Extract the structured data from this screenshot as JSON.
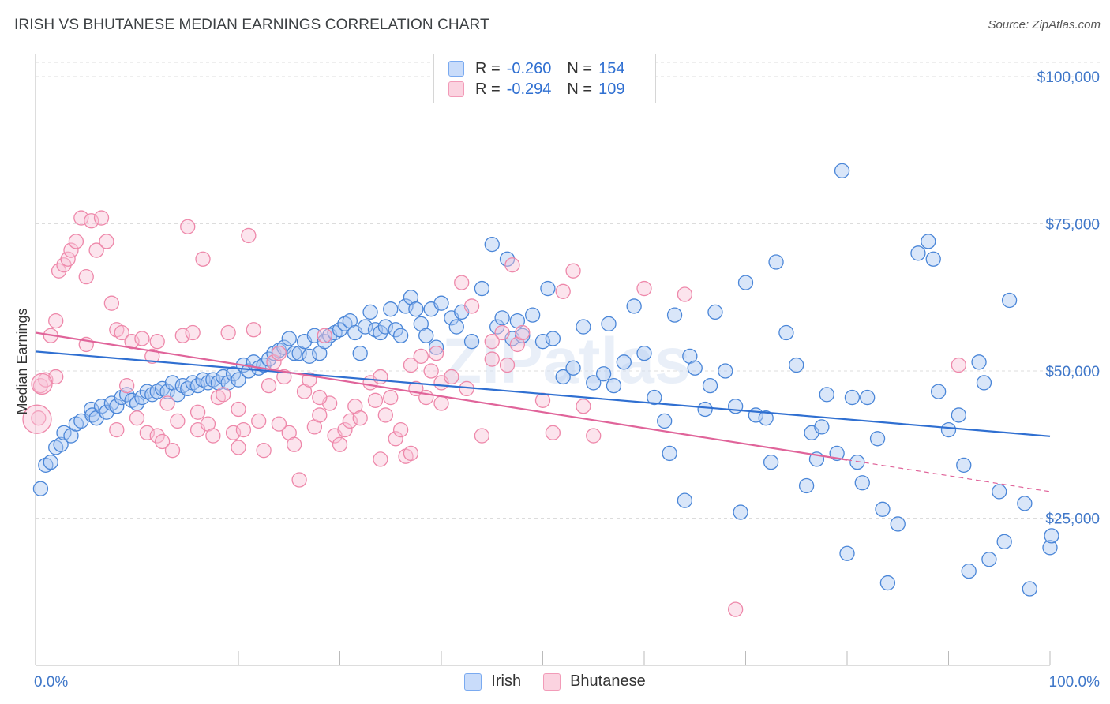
{
  "title": "IRISH VS BHUTANESE MEDIAN EARNINGS CORRELATION CHART",
  "source": "Source: ZipAtlas.com",
  "watermark": "ZIPatlas",
  "legend": {
    "rows": [
      {
        "series": "Irish",
        "r_label": "R =",
        "r_value": "-0.260",
        "n_label": "N =",
        "n_value": "154",
        "color": "#7aaaf0",
        "fill": "#c9dcfa"
      },
      {
        "series": "Bhutanese",
        "r_label": "R =",
        "r_value": "-0.294",
        "n_label": "N =",
        "n_value": "109",
        "color": "#f29bb8",
        "fill": "#fbd3e0"
      }
    ]
  },
  "bottom_legend": [
    "Irish",
    "Bhutanese"
  ],
  "chart_data": {
    "type": "scatter",
    "title": "IRISH VS BHUTANESE MEDIAN EARNINGS CORRELATION CHART",
    "xlabel": "",
    "ylabel": "Median Earnings",
    "xlim": [
      0,
      100
    ],
    "ylim": [
      0,
      105000
    ],
    "x_tick_labels": [
      "0.0%",
      "100.0%"
    ],
    "y_ticks": [
      25000,
      50000,
      75000,
      100000
    ],
    "y_tick_labels": [
      "$25,000",
      "$50,000",
      "$75,000",
      "$100,000"
    ],
    "grid": true,
    "series": [
      {
        "name": "Irish",
        "color": "#4a86d8",
        "fill": "#aac8f2",
        "trend": {
          "x0": 0,
          "y0": 53300,
          "x1": 100,
          "y1": 38900
        },
        "points": [
          [
            0.5,
            30000
          ],
          [
            1.0,
            34000
          ],
          [
            1.5,
            34500
          ],
          [
            2,
            37000
          ],
          [
            2.5,
            37500
          ],
          [
            2.8,
            39500
          ],
          [
            3.5,
            39000
          ],
          [
            4,
            41000
          ],
          [
            4.5,
            41500
          ],
          [
            5.5,
            43500
          ],
          [
            5.6,
            42500
          ],
          [
            6,
            42000
          ],
          [
            6.5,
            44000
          ],
          [
            7,
            43000
          ],
          [
            7.5,
            44500
          ],
          [
            8,
            44000
          ],
          [
            8.5,
            45500
          ],
          [
            9,
            46000
          ],
          [
            9.5,
            45000
          ],
          [
            10,
            44500
          ],
          [
            10.5,
            45500
          ],
          [
            11,
            46500
          ],
          [
            11.5,
            46000
          ],
          [
            12,
            46500
          ],
          [
            12.5,
            47000
          ],
          [
            13,
            46500
          ],
          [
            13.5,
            48000
          ],
          [
            14,
            46000
          ],
          [
            14.5,
            47500
          ],
          [
            15,
            47000
          ],
          [
            15.5,
            48000
          ],
          [
            16,
            47500
          ],
          [
            16.5,
            48500
          ],
          [
            17,
            48000
          ],
          [
            17.5,
            48500
          ],
          [
            18,
            48000
          ],
          [
            18.5,
            49000
          ],
          [
            19,
            48000
          ],
          [
            19.5,
            49500
          ],
          [
            20,
            48500
          ],
          [
            20.5,
            51000
          ],
          [
            21,
            50000
          ],
          [
            21.5,
            51500
          ],
          [
            22,
            50500
          ],
          [
            22.5,
            51000
          ],
          [
            23,
            52000
          ],
          [
            23.5,
            53000
          ],
          [
            24,
            53500
          ],
          [
            24.5,
            54000
          ],
          [
            25,
            55500
          ],
          [
            25.5,
            53000
          ],
          [
            26,
            53000
          ],
          [
            26.5,
            55000
          ],
          [
            27,
            52500
          ],
          [
            27.5,
            56000
          ],
          [
            28,
            53000
          ],
          [
            28.5,
            55000
          ],
          [
            29,
            56000
          ],
          [
            29.5,
            56500
          ],
          [
            30,
            57000
          ],
          [
            30.5,
            58000
          ],
          [
            31,
            58500
          ],
          [
            31.5,
            56500
          ],
          [
            32,
            53000
          ],
          [
            32.5,
            57500
          ],
          [
            33,
            60000
          ],
          [
            33.5,
            57000
          ],
          [
            34,
            56500
          ],
          [
            34.5,
            57500
          ],
          [
            35,
            60500
          ],
          [
            35.5,
            57000
          ],
          [
            36,
            56000
          ],
          [
            36.5,
            61000
          ],
          [
            37,
            62500
          ],
          [
            37.5,
            60500
          ],
          [
            38,
            58000
          ],
          [
            38.5,
            56000
          ],
          [
            39,
            60500
          ],
          [
            39.5,
            54000
          ],
          [
            40,
            61500
          ],
          [
            41,
            59000
          ],
          [
            41.5,
            57500
          ],
          [
            42,
            60000
          ],
          [
            43,
            55000
          ],
          [
            44,
            64000
          ],
          [
            45,
            71500
          ],
          [
            45.5,
            57500
          ],
          [
            46,
            59000
          ],
          [
            46.5,
            69000
          ],
          [
            47,
            55500
          ],
          [
            47.5,
            58500
          ],
          [
            48,
            56000
          ],
          [
            49,
            59500
          ],
          [
            50,
            55000
          ],
          [
            50.5,
            64000
          ],
          [
            51,
            55500
          ],
          [
            52,
            49000
          ],
          [
            53,
            50500
          ],
          [
            54,
            57500
          ],
          [
            55,
            48000
          ],
          [
            56,
            49500
          ],
          [
            56.5,
            58000
          ],
          [
            57,
            47500
          ],
          [
            58,
            51500
          ],
          [
            59,
            61000
          ],
          [
            60,
            53000
          ],
          [
            61,
            45500
          ],
          [
            62,
            41500
          ],
          [
            62.5,
            36000
          ],
          [
            63,
            59500
          ],
          [
            64,
            28000
          ],
          [
            64.5,
            52500
          ],
          [
            65,
            50500
          ],
          [
            66,
            43500
          ],
          [
            66.5,
            47500
          ],
          [
            67,
            60000
          ],
          [
            68,
            50000
          ],
          [
            69,
            44000
          ],
          [
            69.5,
            26000
          ],
          [
            70,
            65000
          ],
          [
            71,
            42500
          ],
          [
            72,
            42000
          ],
          [
            72.5,
            34500
          ],
          [
            73,
            68500
          ],
          [
            74,
            56500
          ],
          [
            75,
            51000
          ],
          [
            76,
            30500
          ],
          [
            76.5,
            39500
          ],
          [
            77,
            35000
          ],
          [
            77.5,
            40500
          ],
          [
            78,
            46000
          ],
          [
            79,
            36000
          ],
          [
            79.5,
            84000
          ],
          [
            80,
            19000
          ],
          [
            80.5,
            45500
          ],
          [
            81,
            34500
          ],
          [
            81.5,
            31000
          ],
          [
            82,
            45500
          ],
          [
            83,
            38500
          ],
          [
            83.5,
            26500
          ],
          [
            84,
            14000
          ],
          [
            85,
            24000
          ],
          [
            87,
            70000
          ],
          [
            88,
            72000
          ],
          [
            88.5,
            69000
          ],
          [
            89,
            46500
          ],
          [
            90,
            40000
          ],
          [
            91,
            42500
          ],
          [
            91.5,
            34000
          ],
          [
            92,
            16000
          ],
          [
            93,
            51500
          ],
          [
            93.5,
            48000
          ],
          [
            94,
            18000
          ],
          [
            95,
            29500
          ],
          [
            95.5,
            21000
          ],
          [
            96,
            62000
          ],
          [
            97.5,
            27500
          ],
          [
            98,
            13000
          ],
          [
            100,
            20000
          ],
          [
            101,
            22000
          ]
        ]
      },
      {
        "name": "Bhutanese",
        "color": "#ee88aa",
        "fill": "#f9c4d6",
        "trend": {
          "x0": 0,
          "y0": 56500,
          "x1": 100,
          "y1": 29500,
          "solid_until": 80
        },
        "points": [
          [
            0.3,
            42000
          ],
          [
            0.5,
            47500
          ],
          [
            1,
            48500
          ],
          [
            1.5,
            56000
          ],
          [
            2,
            58500
          ],
          [
            2.3,
            67000
          ],
          [
            2.8,
            68000
          ],
          [
            3.2,
            69000
          ],
          [
            3.5,
            70500
          ],
          [
            4,
            72000
          ],
          [
            4.5,
            76000
          ],
          [
            5,
            54500
          ],
          [
            5.5,
            75500
          ],
          [
            6,
            70500
          ],
          [
            6.5,
            76000
          ],
          [
            7,
            72000
          ],
          [
            7.5,
            61500
          ],
          [
            8,
            57000
          ],
          [
            8.5,
            56500
          ],
          [
            9,
            47500
          ],
          [
            9.5,
            55000
          ],
          [
            10,
            42000
          ],
          [
            10.5,
            55500
          ],
          [
            11,
            39500
          ],
          [
            11.5,
            52500
          ],
          [
            12,
            39000
          ],
          [
            12.5,
            38000
          ],
          [
            13,
            44500
          ],
          [
            13.5,
            36500
          ],
          [
            14,
            41500
          ],
          [
            14.5,
            56000
          ],
          [
            15,
            74500
          ],
          [
            15.5,
            56500
          ],
          [
            16,
            40000
          ],
          [
            16.5,
            69000
          ],
          [
            17,
            41000
          ],
          [
            17.5,
            39000
          ],
          [
            18,
            45500
          ],
          [
            18.5,
            46000
          ],
          [
            19,
            56500
          ],
          [
            19.5,
            39500
          ],
          [
            20,
            43500
          ],
          [
            20.5,
            40000
          ],
          [
            21,
            73000
          ],
          [
            21.5,
            57000
          ],
          [
            22,
            41500
          ],
          [
            22.5,
            36500
          ],
          [
            23,
            47500
          ],
          [
            23.5,
            51500
          ],
          [
            24,
            53000
          ],
          [
            24.5,
            49000
          ],
          [
            25,
            39500
          ],
          [
            25.5,
            37500
          ],
          [
            26,
            31500
          ],
          [
            26.5,
            46500
          ],
          [
            27,
            48500
          ],
          [
            27.5,
            40500
          ],
          [
            28,
            42500
          ],
          [
            28.5,
            56000
          ],
          [
            29,
            44500
          ],
          [
            29.5,
            39000
          ],
          [
            30,
            37500
          ],
          [
            30.5,
            40000
          ],
          [
            31,
            41500
          ],
          [
            31.5,
            44000
          ],
          [
            32,
            42000
          ],
          [
            33,
            48000
          ],
          [
            33.5,
            45000
          ],
          [
            34,
            35000
          ],
          [
            34.5,
            42500
          ],
          [
            35,
            45500
          ],
          [
            35.5,
            38500
          ],
          [
            36,
            40000
          ],
          [
            36.5,
            35500
          ],
          [
            37,
            51000
          ],
          [
            37.5,
            47000
          ],
          [
            38,
            52500
          ],
          [
            38.5,
            45500
          ],
          [
            39,
            50000
          ],
          [
            39.5,
            53000
          ],
          [
            40,
            48000
          ],
          [
            41,
            49000
          ],
          [
            42,
            65000
          ],
          [
            42.5,
            47000
          ],
          [
            43,
            61000
          ],
          [
            44,
            39000
          ],
          [
            45,
            52000
          ],
          [
            46,
            56500
          ],
          [
            46.5,
            51000
          ],
          [
            47,
            68000
          ],
          [
            47.5,
            54500
          ],
          [
            48,
            56500
          ],
          [
            50,
            45000
          ],
          [
            51,
            39500
          ],
          [
            52,
            63500
          ],
          [
            53,
            67000
          ],
          [
            54,
            44000
          ],
          [
            55,
            39000
          ],
          [
            60,
            64000
          ],
          [
            64,
            63000
          ],
          [
            69,
            9500
          ],
          [
            91,
            51000
          ],
          [
            2,
            49000
          ],
          [
            5,
            66000
          ],
          [
            8,
            40000
          ],
          [
            12,
            55000
          ],
          [
            16,
            43000
          ],
          [
            20,
            37000
          ],
          [
            24,
            41000
          ],
          [
            28,
            45500
          ],
          [
            34,
            49000
          ],
          [
            37,
            36000
          ],
          [
            40,
            44500
          ],
          [
            45,
            55000
          ]
        ]
      }
    ]
  }
}
